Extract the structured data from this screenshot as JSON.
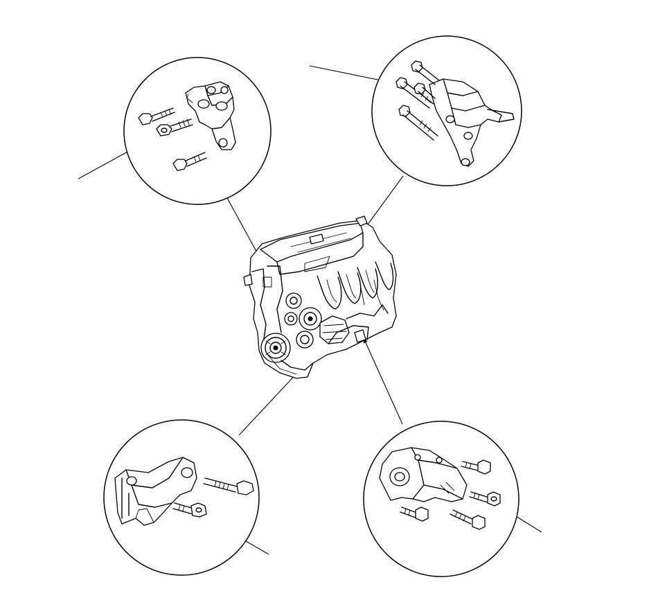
{
  "diagram": {
    "background": "#ffffff",
    "ink": "#000000",
    "views": [
      {
        "id": "engine",
        "icon": "engine-block-icon"
      },
      {
        "id": "detail-top-left",
        "icon": "front-mount-bracket-icon"
      },
      {
        "id": "detail-top-right",
        "icon": "rear-bracket-icon"
      },
      {
        "id": "detail-bottom-left",
        "icon": "side-mount-bracket-icon"
      },
      {
        "id": "detail-bottom-right",
        "icon": "transmission-mount-icon"
      }
    ]
  }
}
